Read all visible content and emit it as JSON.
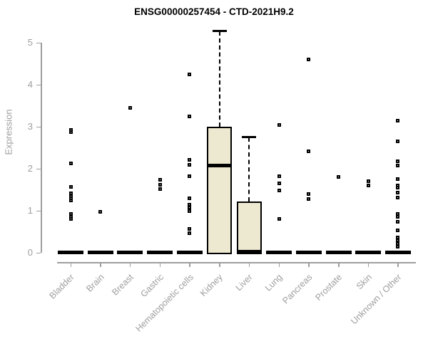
{
  "title": "ENSG00000257454 - CTD-2021H9.2",
  "chart_data": {
    "type": "box",
    "title": "ENSG00000257454 - CTD-2021H9.2",
    "xlabel": "",
    "ylabel": "Expression",
    "ylim": [
      0,
      5.4
    ],
    "yticks": [
      0,
      1,
      2,
      3,
      4,
      5
    ],
    "grid": false,
    "legend": "none",
    "categories": [
      "Bladder",
      "Brain",
      "Breast",
      "Gastric",
      "Hematopoietic cells",
      "Kidney",
      "Liver",
      "Lung",
      "Pancreas",
      "Prostate",
      "Skin",
      "Unknown / Other"
    ],
    "groups": [
      {
        "label": "Bladder",
        "q1": 0,
        "median": 0,
        "q3": 0,
        "whisker_low": 0,
        "whisker_high": 0,
        "outliers": [
          2.92,
          2.88,
          2.12,
          1.56,
          1.41,
          1.35,
          1.3,
          1.24,
          0.93,
          0.86,
          0.8
        ]
      },
      {
        "label": "Brain",
        "q1": 0,
        "median": 0,
        "q3": 0,
        "whisker_low": 0,
        "whisker_high": 0,
        "outliers": [
          0.98
        ]
      },
      {
        "label": "Breast",
        "q1": 0,
        "median": 0,
        "q3": 0,
        "whisker_low": 0,
        "whisker_high": 0,
        "outliers": [
          3.45
        ]
      },
      {
        "label": "Gastric",
        "q1": 0,
        "median": 0,
        "q3": 0,
        "whisker_low": 0,
        "whisker_high": 0,
        "outliers": [
          1.73,
          1.62,
          1.51
        ]
      },
      {
        "label": "Hematopoietic cells",
        "q1": 0,
        "median": 0,
        "q3": 0,
        "whisker_low": 0,
        "whisker_high": 0,
        "outliers": [
          4.24,
          3.25,
          2.22,
          2.1,
          1.83,
          1.3,
          1.15,
          1.08,
          1.0,
          0.56,
          0.46
        ]
      },
      {
        "label": "Kidney",
        "q1": 0,
        "median": 2.08,
        "q3": 3.0,
        "whisker_low": 0,
        "whisker_high": 5.28,
        "outliers": []
      },
      {
        "label": "Liver",
        "q1": 0,
        "median": 0,
        "q3": 1.22,
        "whisker_low": 0,
        "whisker_high": 2.76,
        "outliers": []
      },
      {
        "label": "Lung",
        "q1": 0,
        "median": 0,
        "q3": 0,
        "whisker_low": 0,
        "whisker_high": 0,
        "outliers": [
          3.05,
          1.83,
          1.66,
          1.49,
          0.8
        ]
      },
      {
        "label": "Pancreas",
        "q1": 0,
        "median": 0,
        "q3": 0,
        "whisker_low": 0,
        "whisker_high": 0,
        "outliers": [
          4.6,
          2.42,
          1.39,
          1.28
        ]
      },
      {
        "label": "Prostate",
        "q1": 0,
        "median": 0,
        "q3": 0,
        "whisker_low": 0,
        "whisker_high": 0,
        "outliers": [
          1.8
        ]
      },
      {
        "label": "Skin",
        "q1": 0,
        "median": 0,
        "q3": 0,
        "whisker_low": 0,
        "whisker_high": 0,
        "outliers": [
          1.71,
          1.61
        ]
      },
      {
        "label": "Unknown / Other",
        "q1": 0,
        "median": 0,
        "q3": 0,
        "whisker_low": 0,
        "whisker_high": 0,
        "outliers": [
          3.14,
          2.66,
          2.17,
          2.07,
          1.75,
          1.61,
          1.55,
          1.44,
          1.32,
          0.93,
          0.85,
          0.73,
          0.54,
          0.37,
          0.29,
          0.22,
          0.14
        ]
      }
    ],
    "colors": {
      "box_fill": "#EDE8D0",
      "box_border": "#000000",
      "median": "#000000",
      "marker": "#000000",
      "axis": "#9e9e9e",
      "title": "#000000",
      "background": "#ffffff"
    }
  }
}
